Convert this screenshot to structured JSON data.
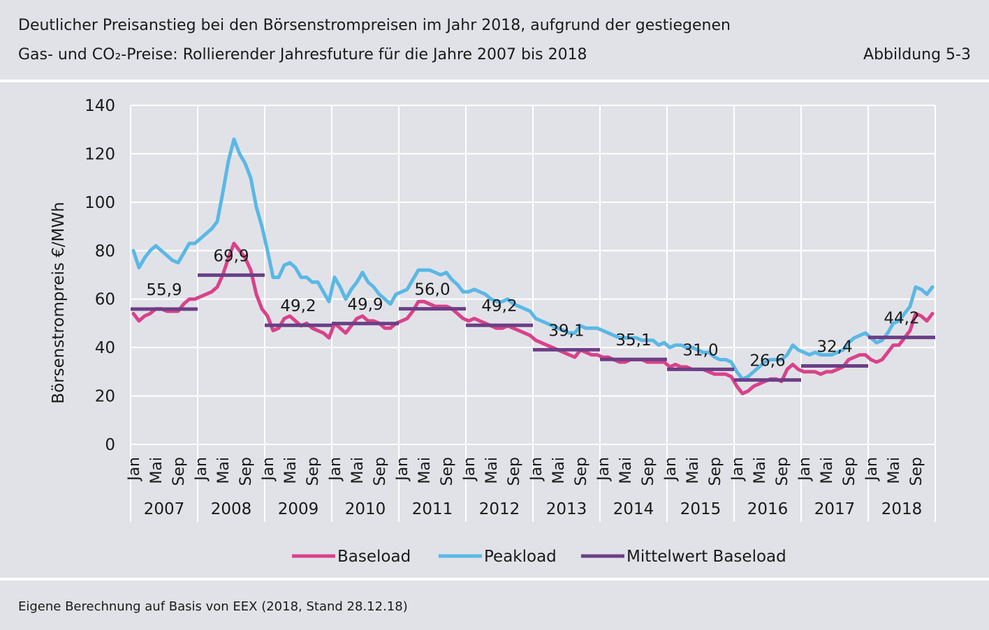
{
  "header": {
    "title_line1": "Deutlicher Preisanstieg bei den Börsenstrompreisen im Jahr 2018, aufgrund der gestiegenen",
    "title_line2": "Gas- und CO₂-Preise: Rollierender Jahresfuture für die Jahre 2007 bis 2018",
    "figure_number": "Abbildung 5-3"
  },
  "footer": {
    "source": "Eigene Berechnung auf Basis von EEX (2018, Stand 28.12.18)"
  },
  "colors": {
    "baseload": "#d9428a",
    "peakload": "#5ab8e6",
    "mittelwert": "#6b3f86",
    "grid": "#ffffff"
  },
  "chart_data": {
    "type": "line",
    "ylabel": "Börsenstrompreis €/MWh",
    "xlabel": "",
    "ylim": [
      0,
      140
    ],
    "yticks": [
      0,
      20,
      40,
      60,
      80,
      100,
      120,
      140
    ],
    "grid": true,
    "legend_position": "bottom",
    "month_tick_labels": [
      "Jan",
      "Mai",
      "Sep"
    ],
    "years": [
      "2007",
      "2008",
      "2009",
      "2010",
      "2011",
      "2012",
      "2013",
      "2014",
      "2015",
      "2016",
      "2017",
      "2018"
    ],
    "series": [
      {
        "name": "Baseload",
        "values": [
          54,
          51,
          53,
          54,
          56,
          56,
          55,
          55,
          55,
          58,
          60,
          60,
          61,
          62,
          63,
          65,
          70,
          77,
          83,
          80,
          77,
          72,
          62,
          56,
          53,
          47,
          48,
          52,
          53,
          51,
          49,
          50,
          48,
          47,
          46,
          44,
          50,
          48,
          46,
          49,
          52,
          53,
          51,
          51,
          50,
          48,
          48,
          50,
          51,
          52,
          55,
          59,
          59,
          58,
          57,
          57,
          57,
          56,
          54,
          52,
          51,
          52,
          51,
          50,
          49,
          48,
          48,
          49,
          48,
          47,
          46,
          45,
          43,
          42,
          41,
          40,
          39,
          38,
          37,
          36,
          39,
          38,
          37,
          37,
          36,
          36,
          35,
          34,
          34,
          35,
          35,
          35,
          34,
          34,
          34,
          34,
          32,
          33,
          32,
          32,
          31,
          31,
          31,
          30,
          29,
          29,
          29,
          28,
          24,
          21,
          22,
          24,
          25,
          26,
          27,
          27,
          26,
          31,
          33,
          31,
          30,
          30,
          30,
          29,
          30,
          30,
          31,
          32,
          35,
          36,
          37,
          37,
          35,
          34,
          35,
          38,
          41,
          41,
          44,
          47,
          54,
          53,
          51,
          54
        ]
      },
      {
        "name": "Peakload",
        "values": [
          80,
          73,
          77,
          80,
          82,
          80,
          78,
          76,
          75,
          79,
          83,
          83,
          85,
          87,
          89,
          92,
          104,
          117,
          126,
          120,
          116,
          110,
          98,
          90,
          80,
          69,
          69,
          74,
          75,
          73,
          69,
          69,
          67,
          67,
          63,
          59,
          69,
          65,
          60,
          64,
          67,
          71,
          67,
          65,
          62,
          60,
          58,
          62,
          63,
          64,
          68,
          72,
          72,
          72,
          71,
          70,
          71,
          68,
          66,
          63,
          63,
          64,
          63,
          62,
          60,
          59,
          59,
          60,
          58,
          57,
          56,
          55,
          52,
          51,
          50,
          49,
          48,
          47,
          46,
          46,
          49,
          48,
          48,
          48,
          47,
          46,
          45,
          44,
          44,
          44,
          44,
          43,
          43,
          43,
          41,
          42,
          40,
          41,
          41,
          40,
          40,
          39,
          38,
          38,
          36,
          35,
          35,
          34,
          30,
          27,
          28,
          30,
          32,
          34,
          35,
          35,
          35,
          37,
          41,
          39,
          38,
          37,
          38,
          37,
          37,
          37,
          38,
          39,
          42,
          44,
          45,
          46,
          44,
          42,
          43,
          46,
          50,
          51,
          54,
          57,
          65,
          64,
          62,
          65
        ]
      }
    ],
    "annual_mean_series": {
      "name": "Mittelwert Baseload",
      "values": [
        55.9,
        69.9,
        49.2,
        49.9,
        56.0,
        49.2,
        39.1,
        35.1,
        31.0,
        26.6,
        32.4,
        44.2
      ],
      "labels": [
        "55,9",
        "69,9",
        "49,2",
        "49,9",
        "56,0",
        "49,2",
        "39,1",
        "35,1",
        "31,0",
        "26,6",
        "32,4",
        "44,2"
      ]
    }
  },
  "legend": {
    "baseload": "Baseload",
    "peakload": "Peakload",
    "mittelwert": "Mittelwert Baseload"
  }
}
